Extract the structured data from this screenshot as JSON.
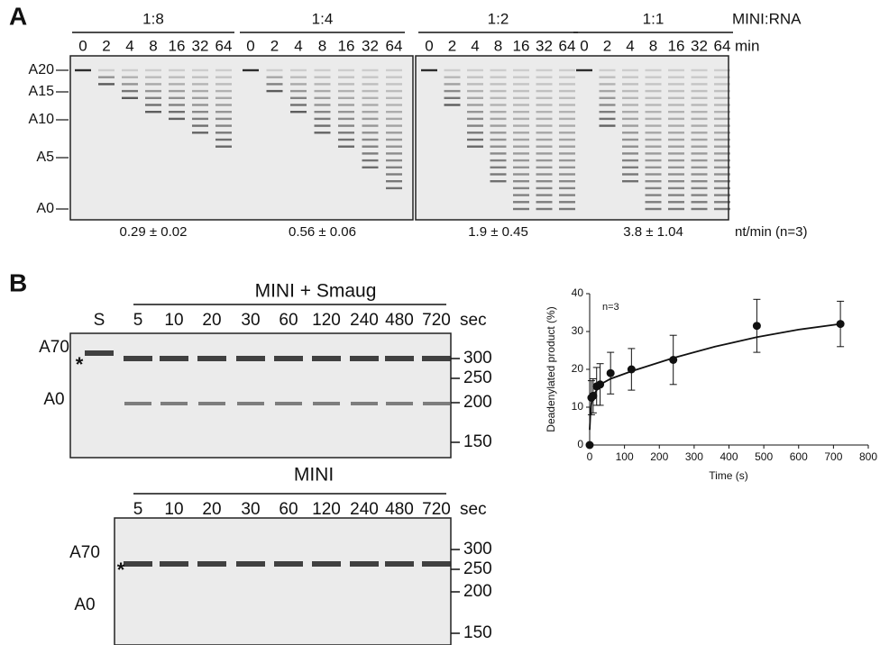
{
  "panel_a": {
    "label": "A",
    "groups": [
      "1:8",
      "1:4",
      "1:2",
      "1:1"
    ],
    "group_axis_label": "MINI:RNA",
    "times": [
      "0",
      "2",
      "4",
      "8",
      "16",
      "32",
      "64"
    ],
    "time_unit": "min",
    "markers": [
      "A20",
      "A15",
      "A10",
      "A5",
      "A0"
    ],
    "rates": [
      "0.29 ± 0.02",
      "0.56 ± 0.06",
      "1.9 ± 0.45",
      "3.8 ± 1.04"
    ],
    "rate_unit": "nt/min (n=3)"
  },
  "panel_b": {
    "label": "B",
    "gel_1": {
      "title": "MINI + Smaug",
      "lanes": [
        "S",
        "5",
        "10",
        "20",
        "30",
        "60",
        "120",
        "240",
        "480",
        "720"
      ],
      "unit": "sec",
      "left_labels": [
        "A70",
        "*",
        "A0"
      ],
      "sizes": [
        "300",
        "250",
        "200",
        "150"
      ]
    },
    "gel_2": {
      "title": "MINI",
      "lanes": [
        "5",
        "10",
        "20",
        "30",
        "60",
        "120",
        "240",
        "480",
        "720"
      ],
      "unit": "sec",
      "left_labels": [
        "A70",
        "*",
        "A0"
      ],
      "sizes": [
        "300",
        "250",
        "200",
        "150"
      ]
    }
  },
  "chart_data": {
    "type": "scatter",
    "annotation": "n=3",
    "x_label": "Time (s)",
    "y_label": "Deadenylated product (%)",
    "xlim": [
      0,
      800
    ],
    "xticks": [
      0,
      100,
      200,
      300,
      400,
      500,
      600,
      700,
      800
    ],
    "ylim": [
      0,
      40
    ],
    "yticks": [
      0,
      10,
      20,
      30,
      40
    ],
    "series": [
      {
        "color": "#111111",
        "x": [
          0,
          5,
          10,
          20,
          30,
          60,
          120,
          240,
          480,
          720
        ],
        "values": [
          0,
          12.5,
          13,
          15.5,
          16,
          19,
          20,
          22.5,
          31.5,
          32
        ],
        "errors": [
          0,
          4.5,
          4.5,
          5,
          5.5,
          5.5,
          5.5,
          6.5,
          7,
          6
        ]
      }
    ],
    "fit": {
      "x": [
        0,
        2,
        5,
        10,
        20,
        40,
        60,
        120,
        240,
        360,
        480,
        600,
        720
      ],
      "values": [
        4,
        8,
        11,
        13,
        14.5,
        16.5,
        17.5,
        19.5,
        23,
        26,
        28.5,
        30.5,
        32
      ]
    }
  }
}
